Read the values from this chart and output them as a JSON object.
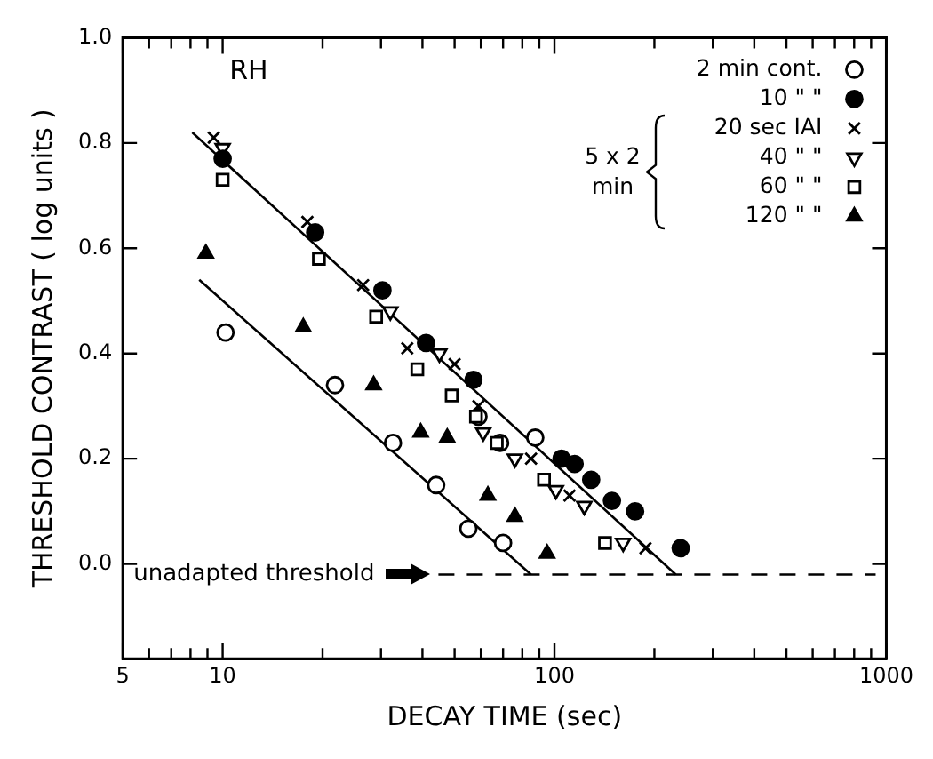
{
  "chart_data": {
    "type": "scatter",
    "xlabel": "DECAY TIME (sec)",
    "ylabel": "THRESHOLD CONTRAST ( log units )",
    "log": "x",
    "xlim": [
      5,
      1000
    ],
    "xticks": [
      5,
      {
        "value": 6,
        "label": null
      },
      {
        "value": 7,
        "label": null
      },
      {
        "value": 8,
        "label": null
      },
      {
        "value": 9,
        "label": null
      },
      10,
      {
        "value": 20,
        "label": null
      },
      {
        "value": 30,
        "label": null
      },
      {
        "value": 40,
        "label": null
      },
      {
        "value": 50,
        "label": null
      },
      {
        "value": 60,
        "label": null
      },
      {
        "value": 70,
        "label": null
      },
      {
        "value": 80,
        "label": null
      },
      {
        "value": 90,
        "label": null
      },
      100,
      {
        "value": 200,
        "label": null
      },
      {
        "value": 300,
        "label": null
      },
      {
        "value": 400,
        "label": null
      },
      {
        "value": 500,
        "label": null
      },
      {
        "value": 600,
        "label": null
      },
      {
        "value": 700,
        "label": null
      },
      {
        "value": 800,
        "label": null
      },
      {
        "value": 900,
        "label": null
      },
      1000
    ],
    "ylim": [
      -0.18,
      1.0
    ],
    "yticks": [
      {
        "value": 0,
        "label": "0.0"
      },
      {
        "value": 0.2,
        "label": "0.2"
      },
      {
        "value": 0.4,
        "label": "0.4"
      },
      {
        "value": 0.6,
        "label": "0.6"
      },
      {
        "value": 0.8,
        "label": "0.8"
      },
      {
        "value": 1.0,
        "label": "1.0"
      }
    ],
    "grid": false,
    "legend": "top right",
    "legend_title": "5 x 2 min",
    "annotations": [
      "RH"
    ],
    "ref_lines": [
      {
        "axis": "y",
        "value": -0.02,
        "label": "unadapted threshold",
        "line_style": "dashed",
        "color": "#000000"
      }
    ],
    "series": [
      {
        "name": "2 min cont.",
        "color": "#000000",
        "marker": "circle",
        "x": [
          10.2,
          21.8,
          32.6,
          44,
          55,
          59,
          68.6,
          70,
          87.5
        ],
        "values": [
          0.44,
          0.34,
          0.23,
          0.15,
          0.067,
          0.28,
          0.23,
          0.04,
          0.24
        ]
      },
      {
        "name": "10 \" \"",
        "color": "#000000",
        "marker": "circle",
        "x": [
          10,
          19,
          30.3,
          41,
          57,
          105,
          115,
          129,
          149,
          175,
          240
        ],
        "values": [
          0.77,
          0.63,
          0.52,
          0.42,
          0.35,
          0.2,
          0.19,
          0.16,
          0.12,
          0.1,
          0.03
        ]
      },
      {
        "name": "20 sec IAI",
        "color": "#000000",
        "marker": "cross",
        "x": [
          9.4,
          18,
          26.5,
          36,
          50,
          59,
          85,
          111,
          188
        ],
        "values": [
          0.81,
          0.65,
          0.53,
          0.41,
          0.38,
          0.3,
          0.2,
          0.13,
          0.03
        ]
      },
      {
        "name": "40 \" \"",
        "color": "#000000",
        "marker": "triangle",
        "x": [
          10,
          32,
          45,
          61,
          76,
          101,
          123,
          161
        ],
        "values": [
          0.79,
          0.48,
          0.4,
          0.25,
          0.2,
          0.14,
          0.11,
          0.04
        ]
      },
      {
        "name": "60 \" \"",
        "color": "#000000",
        "marker": "square",
        "x": [
          10,
          19.5,
          29,
          38.6,
          49,
          58,
          67,
          93,
          142
        ],
        "values": [
          0.73,
          0.58,
          0.47,
          0.37,
          0.32,
          0.28,
          0.23,
          0.16,
          0.04
        ]
      },
      {
        "name": "120 \" \"",
        "color": "#000000",
        "marker": "triangle",
        "x": [
          8.9,
          17.5,
          28.5,
          39.5,
          47.5,
          63,
          76,
          95
        ],
        "values": [
          0.59,
          0.45,
          0.34,
          0.25,
          0.24,
          0.13,
          0.09,
          0.02
        ]
      },
      {
        "type": "line",
        "color": "#000000",
        "marker": "none",
        "x": [
          8.5,
          85
        ],
        "values": [
          0.54,
          -0.02
        ]
      },
      {
        "type": "line",
        "color": "#000000",
        "marker": "none",
        "x": [
          8.1,
          232
        ],
        "values": [
          0.82,
          -0.02
        ]
      }
    ]
  }
}
